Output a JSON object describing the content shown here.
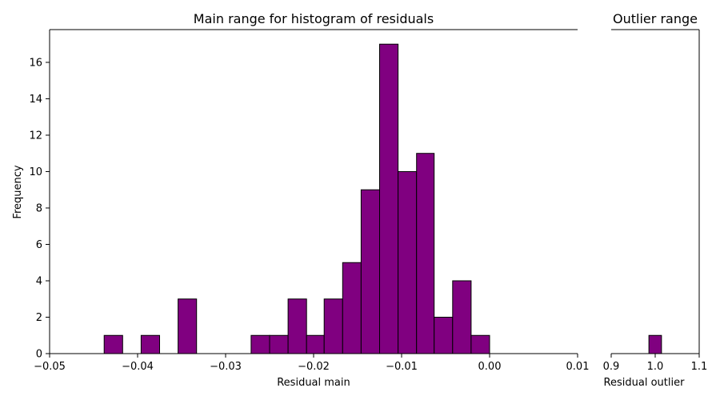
{
  "chart_data": [
    {
      "type": "bar",
      "title": "Main range for histogram of residuals",
      "xlabel": "Residual main",
      "ylabel": "Frequency",
      "xlim": [
        -0.05,
        0.01
      ],
      "ylim": [
        0,
        17.8
      ],
      "x_ticks": [
        "−0.05",
        "−0.04",
        "−0.03",
        "−0.02",
        "−0.01",
        "0.00",
        "0.01"
      ],
      "x_tick_values": [
        -0.05,
        -0.04,
        -0.03,
        -0.02,
        -0.01,
        0.0,
        0.01
      ],
      "y_ticks": [
        "0",
        "2",
        "4",
        "6",
        "8",
        "10",
        "12",
        "14",
        "16"
      ],
      "y_tick_values": [
        0,
        2,
        4,
        6,
        8,
        10,
        12,
        14,
        16
      ],
      "bin_edges": [
        -0.05,
        -0.0479,
        -0.0458,
        -0.0438,
        -0.0417,
        -0.0396,
        -0.0375,
        -0.0354,
        -0.0333,
        -0.0313,
        -0.0292,
        -0.0271,
        -0.025,
        -0.0229,
        -0.0208,
        -0.0188,
        -0.0167,
        -0.0146,
        -0.0125,
        -0.0104,
        -0.0083,
        -0.0063,
        -0.0042,
        -0.0021,
        0.0,
        0.0021,
        0.0042,
        0.0063,
        0.0083,
        0.0104
      ],
      "values": [
        0,
        0,
        0,
        1,
        0,
        1,
        0,
        3,
        0,
        0,
        0,
        1,
        1,
        3,
        1,
        3,
        5,
        9,
        17,
        10,
        11,
        2,
        4,
        1,
        0,
        0,
        0,
        0,
        0
      ],
      "bar_color": "#800080",
      "edge_color": "#000000",
      "grid": false
    },
    {
      "type": "bar",
      "title": "Outlier range",
      "xlabel": "Residual outlier",
      "xlim": [
        0.9,
        1.1
      ],
      "ylim": [
        0,
        17.8
      ],
      "x_ticks": [
        "0.9",
        "1.0",
        "1.1"
      ],
      "x_tick_values": [
        0.9,
        1.0,
        1.1
      ],
      "bin_edges": [
        0.9,
        0.9286,
        0.9571,
        0.9857,
        1.0143,
        1.0429,
        1.0714,
        1.1
      ],
      "values": [
        0,
        0,
        0,
        1,
        0,
        0,
        0
      ],
      "bar_color": "#800080",
      "edge_color": "#000000",
      "grid": false
    }
  ]
}
